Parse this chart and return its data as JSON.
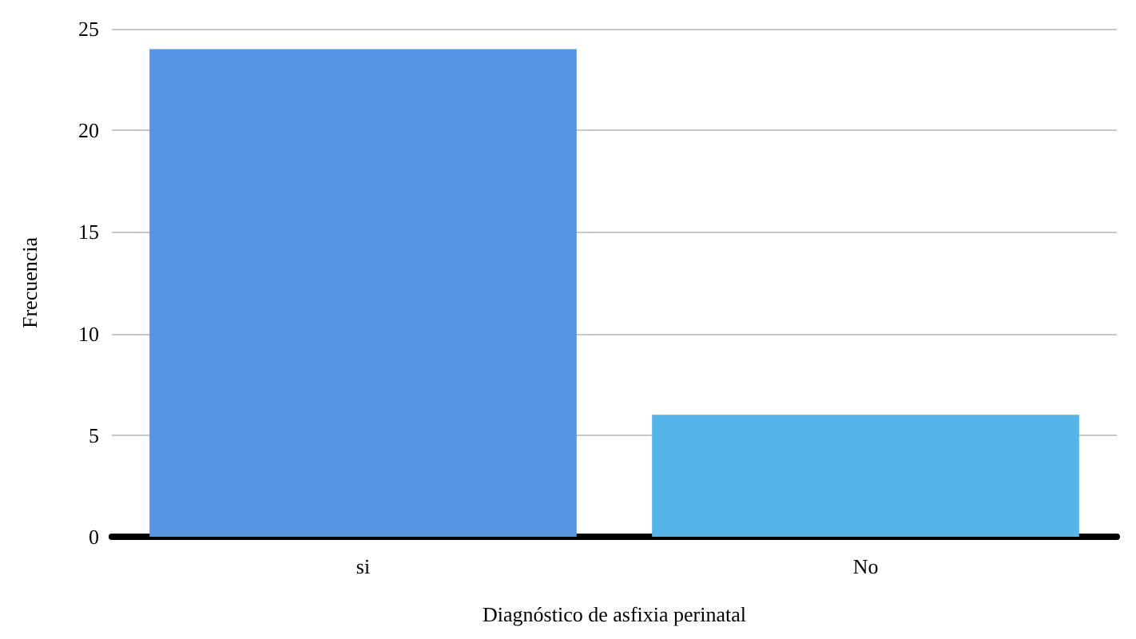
{
  "chart_data": {
    "type": "bar",
    "xlabel": "Diagnóstico de asfixia perinatal",
    "ylabel": "Frecuencia",
    "categories": [
      "si",
      "No"
    ],
    "values": [
      24,
      6
    ],
    "colors": [
      "#5795e4",
      "#56b5e8"
    ],
    "ylim": [
      0,
      25
    ],
    "yticks": [
      0,
      5,
      10,
      15,
      20,
      25
    ],
    "grid": "y"
  }
}
